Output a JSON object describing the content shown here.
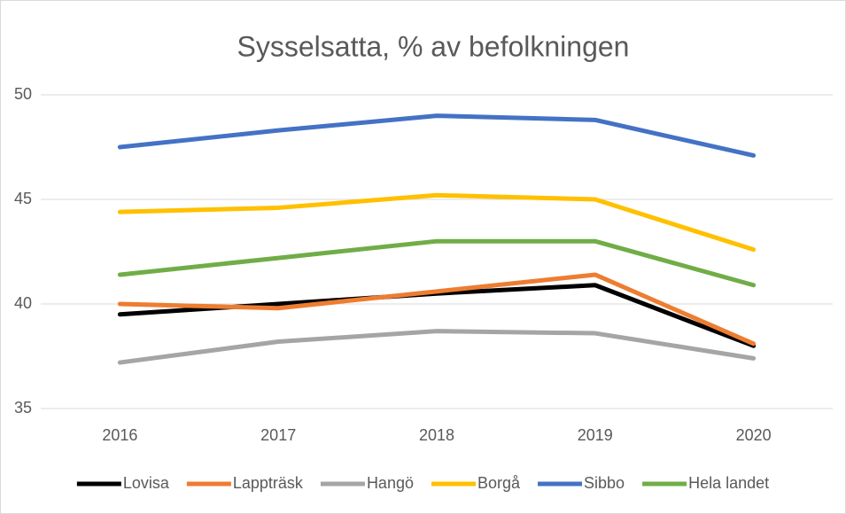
{
  "chart_data": {
    "type": "line",
    "title": "Sysselsatta, % av befolkningen",
    "categories": [
      "2016",
      "2017",
      "2018",
      "2019",
      "2020"
    ],
    "series": [
      {
        "name": "Lovisa",
        "color": "#000000",
        "values": [
          39.5,
          40.0,
          40.5,
          40.9,
          38.0
        ]
      },
      {
        "name": "Lappträsk",
        "color": "#ed7d31",
        "values": [
          40.0,
          39.8,
          40.6,
          41.4,
          38.1
        ]
      },
      {
        "name": "Hangö",
        "color": "#a5a5a5",
        "values": [
          37.2,
          38.2,
          38.7,
          38.6,
          37.4
        ]
      },
      {
        "name": "Borgå",
        "color": "#ffc000",
        "values": [
          44.4,
          44.6,
          45.2,
          45.0,
          42.6
        ]
      },
      {
        "name": "Sibbo",
        "color": "#4472c4",
        "values": [
          47.5,
          48.3,
          49.0,
          48.8,
          47.1
        ]
      },
      {
        "name": "Hela landet",
        "color": "#70ad47",
        "values": [
          41.4,
          42.2,
          43.0,
          43.0,
          40.9
        ]
      }
    ],
    "ylim": [
      35,
      50
    ],
    "yticks": [
      35,
      40,
      45,
      50
    ],
    "grid": true,
    "legend": "bottom"
  }
}
